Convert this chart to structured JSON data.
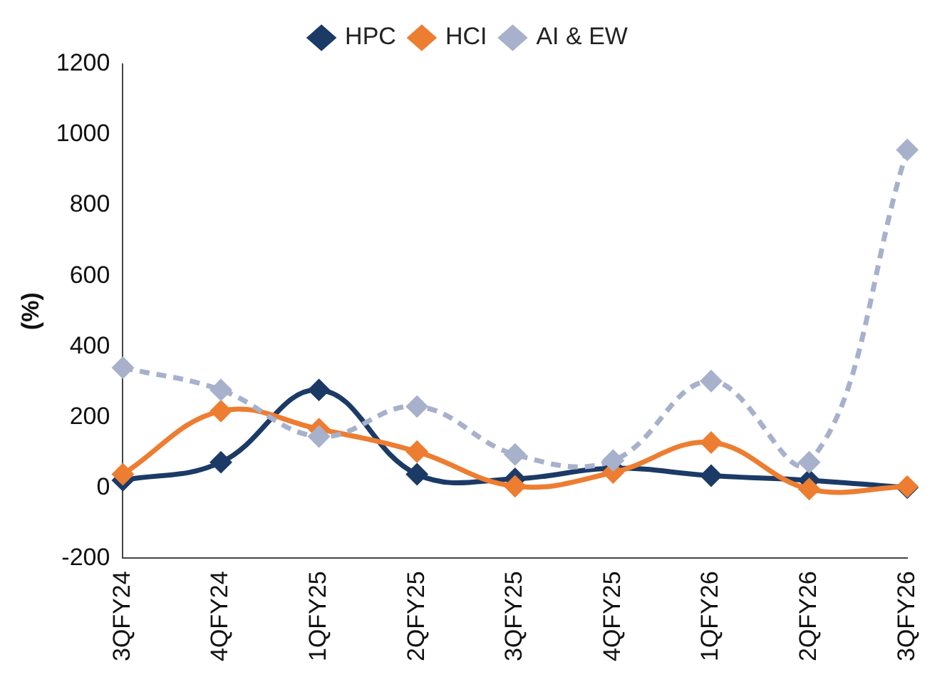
{
  "chart_data": {
    "type": "line",
    "ylabel": "(%)",
    "categories": [
      "3QFY24",
      "4QFY24",
      "1QFY25",
      "2QFY25",
      "3QFY25",
      "4QFY25",
      "1QFY26",
      "2QFY26",
      "3QFY26"
    ],
    "series": [
      {
        "name": "HPC",
        "color": "#1b3a66",
        "values": [
          21,
          72,
          277,
          38,
          25,
          55,
          34,
          21,
          0
        ]
      },
      {
        "name": "HCI",
        "color": "#ed7d31",
        "values": [
          38,
          217,
          166,
          102,
          4,
          43,
          128,
          -4,
          3
        ]
      },
      {
        "name": "AI & EW",
        "color": "#a7b1cb",
        "line_style": "dashed",
        "values": [
          340,
          277,
          145,
          230,
          94,
          77,
          302,
          72,
          957
        ]
      }
    ],
    "ylim": [
      -200,
      1200
    ],
    "yticks": [
      -200,
      0,
      200,
      400,
      600,
      800,
      1000,
      1200
    ],
    "grid": false,
    "legend": "top",
    "marker": "diamond",
    "line_style": "solid"
  }
}
